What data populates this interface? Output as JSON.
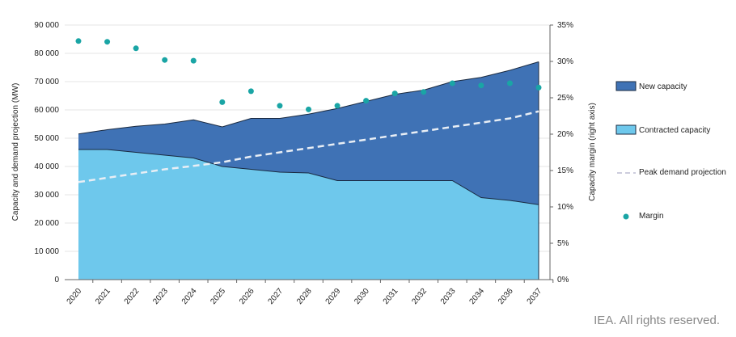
{
  "chart_data": {
    "type": "area",
    "categories": [
      "2020",
      "2021",
      "2022",
      "2023",
      "2024",
      "2025",
      "2026",
      "2027",
      "2028",
      "2029",
      "2030",
      "2031",
      "2032",
      "2033",
      "2034",
      "2036",
      "2037"
    ],
    "series": [
      {
        "name": "Contracted capacity",
        "type": "area",
        "color": "#6ec8ec",
        "values": [
          46000,
          46000,
          45000,
          44000,
          43000,
          40000,
          39000,
          38000,
          37700,
          35000,
          35000,
          35000,
          35000,
          35000,
          29000,
          28000,
          26500
        ]
      },
      {
        "name": "New capacity",
        "type": "stacked-area-top",
        "color": "#3f72b5",
        "values": [
          51500,
          53000,
          54200,
          55000,
          56500,
          54000,
          57000,
          57000,
          58500,
          60500,
          63000,
          65500,
          67000,
          70000,
          71500,
          74000,
          77000
        ]
      },
      {
        "name": "Peak demand projection",
        "type": "dashed-line",
        "color": "#e8eef5",
        "values": [
          34500,
          36000,
          37500,
          39000,
          40200,
          41500,
          43500,
          45000,
          46500,
          48000,
          49500,
          51000,
          52500,
          54000,
          55500,
          57000,
          59500
        ]
      },
      {
        "name": "Margin",
        "type": "scatter",
        "axis": "right",
        "color": "#1aa5a5",
        "values": [
          32.8,
          32.7,
          31.8,
          30.2,
          30.1,
          24.4,
          25.9,
          23.9,
          23.4,
          23.9,
          24.6,
          25.6,
          25.8,
          27.0,
          26.7,
          27.0,
          26.4
        ]
      }
    ],
    "ylabel": "Capacity and demand projection (MW)",
    "y2label": "Capacity margin (right axis)",
    "ylim": [
      0,
      90000
    ],
    "y2lim": [
      0,
      35
    ],
    "yticks": [
      "0",
      "10 000",
      "20 000",
      "30 000",
      "40 000",
      "50 000",
      "60 000",
      "70 000",
      "80 000",
      "90 000"
    ],
    "y2ticks": [
      "0%",
      "5%",
      "10%",
      "15%",
      "20%",
      "25%",
      "30%",
      "35%"
    ],
    "legend": [
      "New capacity",
      "Contracted capacity",
      "Peak demand projection",
      "Margin"
    ],
    "legend_position": "right",
    "grid": true
  },
  "credit": "IEA. All rights reserved."
}
